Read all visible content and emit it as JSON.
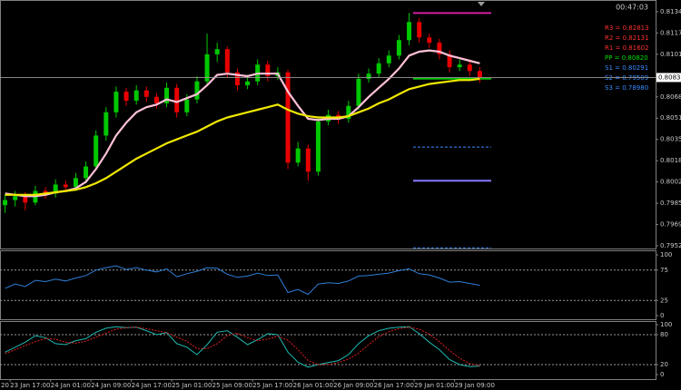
{
  "header": {
    "clock": "00:47:03"
  },
  "chart_data": [
    {
      "type": "candlestick",
      "xlim": [
        -0.5,
        47.5
      ],
      "ylim": [
        0.79511,
        0.81431
      ],
      "yticks": [
        {
          "value": 0.8134,
          "label": "0.81340"
        },
        {
          "value": 0.81175,
          "label": "0.81175"
        },
        {
          "value": 0.8101,
          "label": "0.81010"
        },
        {
          "value": 0.8068,
          "label": "0.80680"
        },
        {
          "value": 0.80515,
          "label": "0.80515"
        },
        {
          "value": 0.8035,
          "label": "0.80350"
        },
        {
          "value": 0.80185,
          "label": "0.80185"
        },
        {
          "value": 0.8002,
          "label": "0.80020"
        },
        {
          "value": 0.79855,
          "label": "0.79855"
        },
        {
          "value": 0.7969,
          "label": "0.79690"
        },
        {
          "value": 0.79525,
          "label": "0.79525"
        }
      ],
      "up_color": "#00c800",
      "down_color": "#e80000",
      "open": [
        0.7984,
        0.7988,
        0.7991,
        0.7986,
        0.7995,
        0.7993,
        0.8,
        0.7998,
        0.8005,
        0.8014,
        0.8038,
        0.8056,
        0.8072,
        0.8065,
        0.8073,
        0.8068,
        0.8063,
        0.8075,
        0.8056,
        0.8066,
        0.808,
        0.8101,
        0.8105,
        0.8087,
        0.8077,
        0.808,
        0.8093,
        0.8084,
        0.8087,
        0.8017,
        0.8028,
        0.801,
        0.8049,
        0.8054,
        0.8051,
        0.8061,
        0.8082,
        0.8086,
        0.8094,
        0.81,
        0.8112,
        0.8126,
        0.8114,
        0.811,
        0.8101,
        0.8091,
        0.8093,
        0.8088
      ],
      "high": [
        0.7992,
        0.7995,
        0.7994,
        0.7999,
        0.7998,
        0.8004,
        0.8003,
        0.8009,
        0.8018,
        0.8042,
        0.806,
        0.8076,
        0.8075,
        0.8077,
        0.8076,
        0.8071,
        0.8079,
        0.8078,
        0.807,
        0.8084,
        0.8117,
        0.811,
        0.8107,
        0.809,
        0.8085,
        0.8097,
        0.8096,
        0.8091,
        0.8089,
        0.8033,
        0.8031,
        0.8053,
        0.8058,
        0.8057,
        0.8065,
        0.8086,
        0.809,
        0.8098,
        0.8104,
        0.8116,
        0.8133,
        0.8129,
        0.8117,
        0.8113,
        0.8104,
        0.8097,
        0.8096,
        0.8091
      ],
      "low": [
        0.7978,
        0.7983,
        0.798,
        0.7984,
        0.7989,
        0.799,
        0.7994,
        0.7995,
        0.8001,
        0.8011,
        0.8034,
        0.8052,
        0.8061,
        0.8062,
        0.8064,
        0.8059,
        0.806,
        0.8052,
        0.8053,
        0.8063,
        0.8077,
        0.8095,
        0.8083,
        0.8073,
        0.8074,
        0.8077,
        0.808,
        0.8081,
        0.8012,
        0.8014,
        0.8003,
        0.8007,
        0.8046,
        0.8047,
        0.8048,
        0.8058,
        0.8079,
        0.8083,
        0.8091,
        0.8097,
        0.8108,
        0.811,
        0.8106,
        0.8097,
        0.8087,
        0.8088,
        0.8084,
        0.8079
      ],
      "close": [
        0.7988,
        0.7991,
        0.7986,
        0.7995,
        0.7993,
        0.8,
        0.7998,
        0.8005,
        0.8014,
        0.8038,
        0.8056,
        0.8072,
        0.8065,
        0.8073,
        0.8068,
        0.8063,
        0.8075,
        0.8056,
        0.8066,
        0.808,
        0.8101,
        0.8105,
        0.8087,
        0.8077,
        0.808,
        0.8093,
        0.8084,
        0.8087,
        0.8017,
        0.8028,
        0.801,
        0.8049,
        0.8054,
        0.8051,
        0.8061,
        0.8082,
        0.8086,
        0.8094,
        0.81,
        0.8112,
        0.8126,
        0.8114,
        0.811,
        0.8101,
        0.8091,
        0.8093,
        0.8088,
        0.8083
      ],
      "series": [
        {
          "color": "#ffc0d8",
          "values": [
            0.7993,
            0.7992,
            0.7991,
            0.7991,
            0.7992,
            0.7994,
            0.7995,
            0.7997,
            0.8002,
            0.8012,
            0.8024,
            0.8038,
            0.8048,
            0.8056,
            0.806,
            0.8062,
            0.8066,
            0.8064,
            0.8067,
            0.807,
            0.8077,
            0.8085,
            0.8086,
            0.8085,
            0.8084,
            0.8086,
            0.8086,
            0.8086,
            0.8072,
            0.8061,
            0.8051,
            0.805,
            0.8051,
            0.8051,
            0.8053,
            0.806,
            0.8068,
            0.8075,
            0.8082,
            0.809,
            0.81,
            0.8103,
            0.8104,
            0.8103,
            0.81,
            0.8098,
            0.8096,
            0.8094
          ]
        },
        {
          "color": "#f0e800",
          "values": [
            0.7992,
            0.7992,
            0.7992,
            0.7992,
            0.7993,
            0.7994,
            0.7995,
            0.7996,
            0.7998,
            0.8001,
            0.8005,
            0.801,
            0.8015,
            0.802,
            0.8024,
            0.8028,
            0.8032,
            0.8035,
            0.8038,
            0.8041,
            0.8045,
            0.8049,
            0.8052,
            0.8054,
            0.8056,
            0.8058,
            0.806,
            0.8062,
            0.8058,
            0.8055,
            0.8053,
            0.8052,
            0.8052,
            0.8052,
            0.8053,
            0.8056,
            0.8059,
            0.8063,
            0.8066,
            0.807,
            0.8074,
            0.8076,
            0.8078,
            0.8079,
            0.808,
            0.8081,
            0.8081,
            0.8082
          ]
        }
      ],
      "last": {
        "value": 0.8083,
        "label": "0.80830"
      },
      "pivots": [
        {
          "label": "R3 = 0.82813",
          "value": 0.82813,
          "color": "#ff3030",
          "style": "solid"
        },
        {
          "label": "R2 = 0.82131",
          "value": 0.82131,
          "color": "#ff3030",
          "style": "solid"
        },
        {
          "label": "R1 = 0.81602",
          "value": 0.81602,
          "color": "#ff3030",
          "style": "solid"
        },
        {
          "label": "PP = 0.80820",
          "value": 0.8082,
          "color": "#00e000",
          "style": "solid"
        },
        {
          "label": "S1 = 0.80291",
          "value": 0.80291,
          "color": "#3a8cff",
          "style": "dashed"
        },
        {
          "label": "S2 = 0.79509",
          "value": 0.79509,
          "color": "#3a8cff",
          "style": "dashed"
        },
        {
          "label": "S3 = 0.78980",
          "value": 0.7898,
          "color": "#3a8cff",
          "style": "dashed"
        }
      ],
      "lines": [
        {
          "value": 0.8133,
          "color": "#d020a0"
        },
        {
          "value": 0.8003,
          "color": "#8878ff"
        }
      ]
    },
    {
      "type": "line",
      "xlim": [
        -0.5,
        47.5
      ],
      "ylim": [
        0,
        100
      ],
      "yticks": [
        100,
        75,
        25,
        0
      ],
      "series": [
        {
          "color": "#2f7fd8",
          "values": [
            45,
            52,
            48,
            58,
            56,
            60,
            57,
            62,
            66,
            75,
            79,
            82,
            76,
            79,
            75,
            72,
            77,
            64,
            69,
            73,
            79,
            78,
            68,
            63,
            65,
            70,
            66,
            67,
            38,
            43,
            35,
            52,
            54,
            53,
            57,
            65,
            66,
            68,
            70,
            74,
            77,
            69,
            67,
            62,
            55,
            56,
            53,
            50
          ]
        }
      ]
    },
    {
      "type": "line",
      "xlim": [
        -0.5,
        47.5
      ],
      "ylim": [
        0,
        100
      ],
      "yticks": [
        100,
        80,
        20,
        0
      ],
      "series": [
        {
          "color": "#20b8b0",
          "style": "solid",
          "values": [
            45,
            55,
            65,
            78,
            74,
            62,
            60,
            68,
            72,
            85,
            93,
            96,
            94,
            95,
            88,
            80,
            84,
            62,
            55,
            40,
            60,
            85,
            88,
            75,
            60,
            70,
            82,
            80,
            45,
            25,
            15,
            20,
            24,
            28,
            40,
            62,
            78,
            88,
            93,
            95,
            96,
            82,
            65,
            50,
            30,
            20,
            16,
            17
          ]
        },
        {
          "color": "#e02020",
          "style": "dashed",
          "values": [
            42,
            50,
            58,
            66,
            72,
            71,
            65,
            63,
            67,
            75,
            83,
            91,
            94,
            95,
            92,
            88,
            84,
            75,
            67,
            52,
            52,
            62,
            78,
            83,
            74,
            68,
            71,
            77,
            69,
            50,
            28,
            20,
            20,
            24,
            31,
            43,
            60,
            76,
            86,
            92,
            95,
            91,
            81,
            66,
            48,
            33,
            22,
            18
          ]
        }
      ],
      "xticks": [
        {
          "value": -1,
          "label": "20"
        },
        {
          "value": 0.5,
          "label": "23 Jan 17:00"
        },
        {
          "value": 4.5,
          "label": "24 Jan 01:00"
        },
        {
          "value": 8.5,
          "label": "24 Jan 09:00"
        },
        {
          "value": 12.5,
          "label": "24 Jan 17:00"
        },
        {
          "value": 16.5,
          "label": "25 Jan 01:00"
        },
        {
          "value": 20.5,
          "label": "25 Jan 09:00"
        },
        {
          "value": 24.5,
          "label": "25 Jan 17:00"
        },
        {
          "value": 28.5,
          "label": "26 Jan 01:00"
        },
        {
          "value": 32.5,
          "label": "26 Jan 09:00"
        },
        {
          "value": 36.5,
          "label": "26 Jan 17:00"
        },
        {
          "value": 40.5,
          "label": "29 Jan 01:00"
        },
        {
          "value": 44.5,
          "label": "29 Jan 09:00"
        }
      ]
    }
  ]
}
